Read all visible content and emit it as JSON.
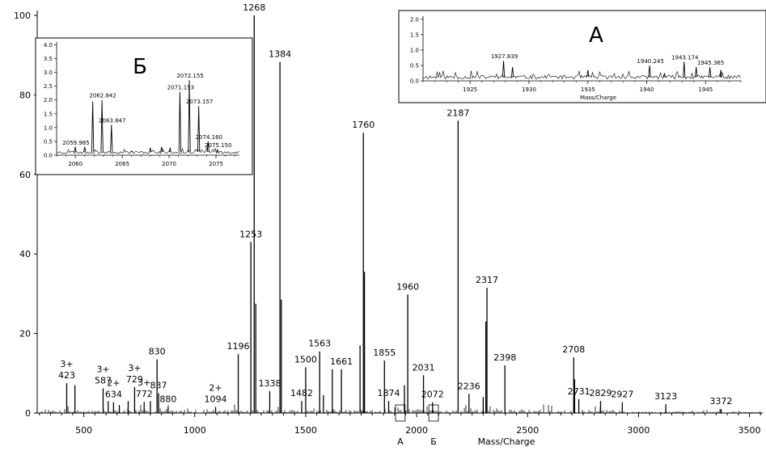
{
  "chart_data": {
    "type": "line",
    "subtype": "mass-spectrum",
    "main": {
      "xlabel": "Mass/Charge",
      "ylabel": "",
      "xlim": [
        290,
        3560
      ],
      "ylim": [
        0,
        100
      ],
      "x_ticks": [
        500,
        1000,
        1500,
        2000,
        2500,
        3000,
        3500
      ],
      "y_ticks": [
        0,
        20,
        40,
        60,
        80,
        100
      ],
      "peaks": [
        {
          "x": 423,
          "y": 7.5,
          "label": "3+\n423"
        },
        {
          "x": 460,
          "y": 7.0,
          "label": ""
        },
        {
          "x": 587,
          "y": 6.2,
          "label": "3+\n587"
        },
        {
          "x": 610,
          "y": 3.0,
          "label": ""
        },
        {
          "x": 634,
          "y": 2.7,
          "label": "2+\n634"
        },
        {
          "x": 660,
          "y": 2.0,
          "label": ""
        },
        {
          "x": 700,
          "y": 3.0,
          "label": ""
        },
        {
          "x": 729,
          "y": 6.5,
          "label": "3+\n729"
        },
        {
          "x": 772,
          "y": 2.8,
          "label": "3+\n772"
        },
        {
          "x": 800,
          "y": 3.0,
          "label": ""
        },
        {
          "x": 830,
          "y": 13.5,
          "label": "830"
        },
        {
          "x": 837,
          "y": 5.0,
          "label": "837"
        },
        {
          "x": 880,
          "y": 1.5,
          "label": "880"
        },
        {
          "x": 1094,
          "y": 1.5,
          "label": "2+\n1094"
        },
        {
          "x": 1196,
          "y": 14.8,
          "label": "1196"
        },
        {
          "x": 1253,
          "y": 43.0,
          "label": "1253"
        },
        {
          "x": 1268,
          "y": 100.0,
          "label": "1268"
        },
        {
          "x": 1275,
          "y": 27.5,
          "label": ""
        },
        {
          "x": 1338,
          "y": 5.5,
          "label": "1338"
        },
        {
          "x": 1384,
          "y": 88.3,
          "label": "1384"
        },
        {
          "x": 1390,
          "y": 28.5,
          "label": ""
        },
        {
          "x": 1482,
          "y": 3.0,
          "label": "1482"
        },
        {
          "x": 1500,
          "y": 11.5,
          "label": "1500"
        },
        {
          "x": 1563,
          "y": 15.5,
          "label": "1563"
        },
        {
          "x": 1580,
          "y": 4.5,
          "label": ""
        },
        {
          "x": 1620,
          "y": 11.0,
          "label": ""
        },
        {
          "x": 1661,
          "y": 11.0,
          "label": "1661"
        },
        {
          "x": 1745,
          "y": 17.0,
          "label": ""
        },
        {
          "x": 1760,
          "y": 70.5,
          "label": "1760"
        },
        {
          "x": 1765,
          "y": 35.5,
          "label": ""
        },
        {
          "x": 1855,
          "y": 13.2,
          "label": "1855"
        },
        {
          "x": 1874,
          "y": 3.0,
          "label": "1874"
        },
        {
          "x": 1945,
          "y": 7.0,
          "label": ""
        },
        {
          "x": 1960,
          "y": 29.8,
          "label": "1960"
        },
        {
          "x": 2031,
          "y": 9.5,
          "label": "2031"
        },
        {
          "x": 2072,
          "y": 2.7,
          "label": "2072"
        },
        {
          "x": 2187,
          "y": 73.5,
          "label": "2187"
        },
        {
          "x": 2236,
          "y": 4.8,
          "label": "2236"
        },
        {
          "x": 2300,
          "y": 4.0,
          "label": ""
        },
        {
          "x": 2312,
          "y": 23.0,
          "label": ""
        },
        {
          "x": 2317,
          "y": 31.5,
          "label": "2317"
        },
        {
          "x": 2398,
          "y": 12.0,
          "label": "2398"
        },
        {
          "x": 2708,
          "y": 14.0,
          "label": "2708"
        },
        {
          "x": 2712,
          "y": 8.5,
          "label": ""
        },
        {
          "x": 2731,
          "y": 3.5,
          "label": "2731"
        },
        {
          "x": 2829,
          "y": 3.0,
          "label": "2829"
        },
        {
          "x": 2927,
          "y": 2.7,
          "label": "2927"
        },
        {
          "x": 3123,
          "y": 2.2,
          "label": "3123"
        },
        {
          "x": 3372,
          "y": 1.0,
          "label": "3372"
        }
      ],
      "region_markers": [
        {
          "x_range": [
            1905,
            1948
          ],
          "label": "А"
        },
        {
          "x_range": [
            2055,
            2098
          ],
          "label": "Б"
        }
      ]
    },
    "insets": [
      {
        "name": "А",
        "xlabel": "Mass/Charge",
        "xlim": [
          1921,
          1948
        ],
        "ylim": [
          0,
          2.1
        ],
        "x_ticks": [
          1925,
          1930,
          1935,
          1940,
          1945
        ],
        "y_ticks": [
          "0.0",
          "0.5",
          "1.0",
          "1.5",
          "2.0"
        ],
        "peaks": [
          {
            "x": 1927.839,
            "y": 0.65,
            "label": "1927.839"
          },
          {
            "x": 1928.6,
            "y": 0.45,
            "label": ""
          },
          {
            "x": 1935.0,
            "y": 0.35,
            "label": ""
          },
          {
            "x": 1940.245,
            "y": 0.5,
            "label": "1940.245"
          },
          {
            "x": 1941.5,
            "y": 0.25,
            "label": ""
          },
          {
            "x": 1943.174,
            "y": 0.62,
            "label": "1943.174"
          },
          {
            "x": 1944.2,
            "y": 0.45,
            "label": ""
          },
          {
            "x": 1945.365,
            "y": 0.45,
            "label": "1945.365"
          },
          {
            "x": 1946.3,
            "y": 0.35,
            "label": ""
          }
        ]
      },
      {
        "name": "Б",
        "xlabel": "",
        "xlim": [
          2058,
          2077.5
        ],
        "ylim": [
          0,
          4.1
        ],
        "x_ticks": [
          2060,
          2065,
          2070,
          2075
        ],
        "y_ticks": [
          "0.0",
          "0.5",
          "1.0",
          "1.5",
          "2.0",
          "2.5",
          "3.0",
          "3.5",
          "4.0"
        ],
        "peaks": [
          {
            "x": 2059.985,
            "y": 0.3,
            "label": "2059.985"
          },
          {
            "x": 2061.0,
            "y": 0.3,
            "label": ""
          },
          {
            "x": 2061.85,
            "y": 1.95,
            "label": ""
          },
          {
            "x": 2062.842,
            "y": 2.0,
            "label": "2062.842"
          },
          {
            "x": 2063.847,
            "y": 1.1,
            "label": "2063.847"
          },
          {
            "x": 2066.0,
            "y": 0.15,
            "label": ""
          },
          {
            "x": 2068.0,
            "y": 0.25,
            "label": ""
          },
          {
            "x": 2069.2,
            "y": 0.3,
            "label": ""
          },
          {
            "x": 2070.1,
            "y": 0.25,
            "label": ""
          },
          {
            "x": 2071.153,
            "y": 2.3,
            "label": "2071.153"
          },
          {
            "x": 2072.155,
            "y": 2.72,
            "label": "2072.155"
          },
          {
            "x": 2073.157,
            "y": 1.78,
            "label": "2073.157"
          },
          {
            "x": 2074.16,
            "y": 0.5,
            "label": "2074.160"
          },
          {
            "x": 2075.15,
            "y": 0.2,
            "label": "2075.150"
          }
        ]
      }
    ]
  }
}
